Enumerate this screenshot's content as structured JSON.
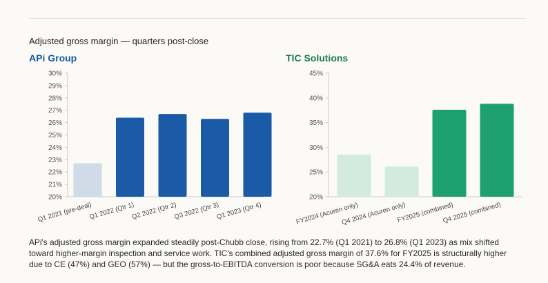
{
  "section_title": "Adjusted gross margin — quarters post-close",
  "caption": "APi's adjusted gross margin expanded steadily post-Chubb close, rising from 22.7% (Q1 2021) to 26.8% (Q1 2023) as mix shifted toward higher-margin inspection and service work. TIC's combined adjusted gross margin of 37.6% for FY2025 is structurally higher due to CE (47%) and GEO (57%) — but the gross-to-EBITDA conversion is poor because SG&A eats 24.4% of revenue.",
  "colors": {
    "api_title": "#1a5aa6",
    "tic_title": "#1e7a52",
    "api_bar": "#1a5aa6",
    "api_bar_light": "#cfdbe6",
    "tic_bar": "#1fa070",
    "tic_bar_light": "#d3ebdf"
  },
  "chart_data": [
    {
      "type": "bar",
      "title": "APi Group",
      "categories": [
        "Q1 2021 (pre-deal)",
        "Q1 2022 (Qtr 1)",
        "Q2 2022 (Qtr 2)",
        "Q3 2022 (Qtr 3)",
        "Q1 2023 (Qtr 4)"
      ],
      "values": [
        22.7,
        26.4,
        26.7,
        26.3,
        26.8
      ],
      "highlight": [
        false,
        true,
        true,
        true,
        true
      ],
      "ylim": [
        20,
        30
      ],
      "yticks": [
        20,
        21,
        22,
        23,
        24,
        25,
        26,
        27,
        28,
        29,
        30
      ],
      "ytick_suffix": "%",
      "grid": false
    },
    {
      "type": "bar",
      "title": "TIC Solutions",
      "categories": [
        "FY2024 (Acuren only)",
        "Q4 2024 (Acuren only)",
        "FY2025 (combined)",
        "Q4 2025 (combined)"
      ],
      "values": [
        28.5,
        26.1,
        37.6,
        38.8
      ],
      "highlight": [
        false,
        false,
        true,
        true
      ],
      "ylim": [
        20,
        45
      ],
      "yticks": [
        20,
        25,
        30,
        35,
        40,
        45
      ],
      "ytick_suffix": "%",
      "grid": false
    }
  ]
}
